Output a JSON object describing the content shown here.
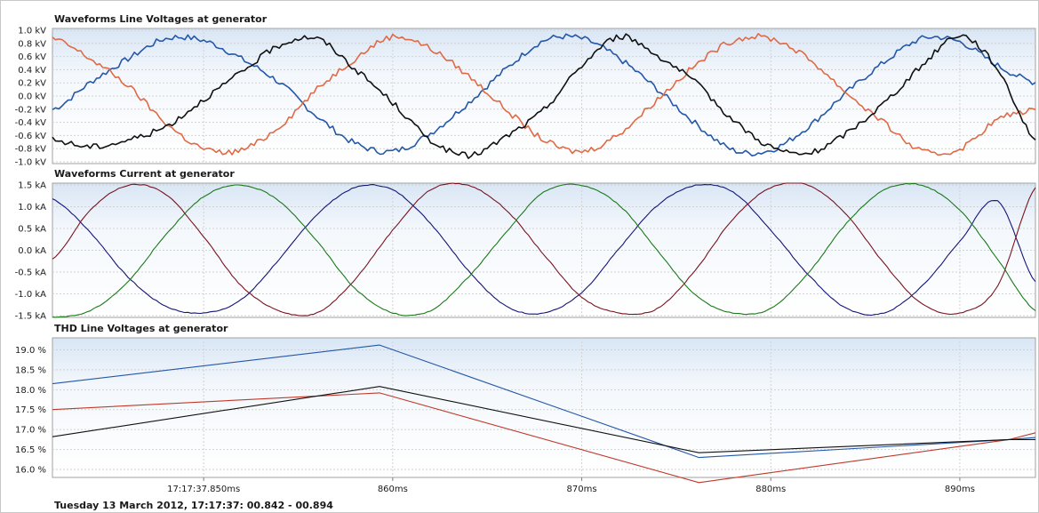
{
  "footer": "Tuesday 13 March 2012, 17:17:37: 00.842 - 00.894",
  "chart_data": [
    {
      "type": "line",
      "title": "Waveforms Line Voltages at generator",
      "yticks": [
        "1.0 kV",
        "0.8 kV",
        "0.6 kV",
        "0.4 kV",
        "0.2 kV",
        "0.0 kV",
        "-0.2 kV",
        "-0.4 kV",
        "-0.6 kV",
        "-0.8 kV",
        "-1.0 kV"
      ],
      "ylim": [
        -1.0,
        1.0
      ],
      "grid": true,
      "x": [
        0.842,
        0.844,
        0.846,
        0.848,
        0.85,
        0.852,
        0.854,
        0.856,
        0.858,
        0.86,
        0.862,
        0.864,
        0.866,
        0.868,
        0.87,
        0.872,
        0.874,
        0.876,
        0.878,
        0.88,
        0.882,
        0.884,
        0.886,
        0.888,
        0.89,
        0.892,
        0.894
      ],
      "series": [
        {
          "color": "#2457a8",
          "values": [
            -0.2,
            0.2,
            0.55,
            0.85,
            0.82,
            0.55,
            0.2,
            -0.3,
            -0.7,
            -0.82,
            -0.55,
            -0.1,
            0.4,
            0.82,
            0.85,
            0.55,
            0.1,
            -0.4,
            -0.8,
            -0.8,
            -0.45,
            0.05,
            0.5,
            0.85,
            0.8,
            0.45,
            0.2
          ]
        },
        {
          "color": "#e06a45",
          "values": [
            0.85,
            0.55,
            0.15,
            -0.4,
            -0.78,
            -0.8,
            -0.45,
            0.1,
            0.55,
            0.88,
            0.7,
            0.3,
            -0.2,
            -0.65,
            -0.82,
            -0.55,
            -0.05,
            0.45,
            0.82,
            0.85,
            0.55,
            0.05,
            -0.4,
            -0.82,
            -0.78,
            -0.35,
            -0.2
          ]
        },
        {
          "color": "#111111",
          "values": [
            -0.65,
            -0.75,
            -0.65,
            -0.45,
            -0.05,
            0.35,
            0.75,
            0.85,
            0.4,
            -0.1,
            -0.65,
            -0.88,
            -0.6,
            -0.2,
            0.45,
            0.88,
            0.6,
            0.2,
            -0.35,
            -0.75,
            -0.85,
            -0.55,
            -0.1,
            0.45,
            0.9,
            0.4,
            -0.65
          ]
        }
      ]
    },
    {
      "type": "line",
      "title": "Waveforms Current at generator",
      "yticks": [
        "1.5 kA",
        "1.0 kA",
        "0.5 kA",
        "0.0 kA",
        "-0.5 kA",
        "-1.0 kA",
        "-1.5 kA"
      ],
      "ylim": [
        -1.5,
        1.5
      ],
      "grid": true,
      "x": [
        0.842,
        0.844,
        0.846,
        0.848,
        0.85,
        0.852,
        0.854,
        0.856,
        0.858,
        0.86,
        0.862,
        0.864,
        0.866,
        0.868,
        0.87,
        0.872,
        0.874,
        0.876,
        0.878,
        0.88,
        0.882,
        0.884,
        0.886,
        0.888,
        0.89,
        0.892,
        0.894
      ],
      "series": [
        {
          "color": "#141478",
          "values": [
            1.15,
            0.4,
            -0.6,
            -1.25,
            -1.4,
            -1.1,
            -0.2,
            0.8,
            1.4,
            1.35,
            0.6,
            -0.45,
            -1.25,
            -1.4,
            -0.95,
            0.05,
            1.0,
            1.45,
            1.3,
            0.45,
            -0.55,
            -1.3,
            -1.4,
            -0.8,
            0.2,
            1.1,
            -0.7
          ]
        },
        {
          "color": "#7a1320",
          "values": [
            -0.2,
            0.9,
            1.45,
            1.25,
            0.3,
            -0.8,
            -1.35,
            -1.4,
            -0.65,
            0.45,
            1.35,
            1.45,
            0.9,
            -0.1,
            -1.05,
            -1.4,
            -1.3,
            -0.45,
            0.7,
            1.4,
            1.45,
            0.8,
            -0.3,
            -1.2,
            -1.4,
            -0.8,
            1.4
          ]
        },
        {
          "color": "#1a7a1a",
          "values": [
            -1.5,
            -1.35,
            -0.7,
            0.35,
            1.2,
            1.45,
            1.1,
            0.2,
            -0.85,
            -1.4,
            -1.35,
            -0.6,
            0.4,
            1.3,
            1.45,
            1.0,
            0.0,
            -1.0,
            -1.4,
            -1.3,
            -0.5,
            0.6,
            1.35,
            1.45,
            0.9,
            -0.2,
            -1.35
          ]
        }
      ]
    },
    {
      "type": "line",
      "title": "THD Line Voltages at generator",
      "yticks": [
        "19.0 %",
        "18.5 %",
        "18.0 %",
        "17.5 %",
        "17.0 %",
        "16.5 %",
        "16.0 %"
      ],
      "ylim": [
        15.8,
        19.3
      ],
      "grid": true,
      "x": [
        0.842,
        0.8593,
        0.8762,
        0.8926,
        0.894
      ],
      "series": [
        {
          "color": "#2457a8",
          "values": [
            18.15,
            19.12,
            16.3,
            16.75,
            16.8
          ]
        },
        {
          "color": "#c0392b",
          "values": [
            17.5,
            17.92,
            15.67,
            16.75,
            16.92
          ]
        },
        {
          "color": "#111111",
          "values": [
            16.82,
            18.08,
            16.42,
            16.75,
            16.75
          ]
        }
      ],
      "xticks": [
        {
          "label": "17:17:37.850ms",
          "x": 0.85
        },
        {
          "label": "860ms",
          "x": 0.86
        },
        {
          "label": "870ms",
          "x": 0.87
        },
        {
          "label": "880ms",
          "x": 0.88
        },
        {
          "label": "890ms",
          "x": 0.89
        }
      ],
      "xlim": [
        0.842,
        0.894
      ]
    }
  ]
}
